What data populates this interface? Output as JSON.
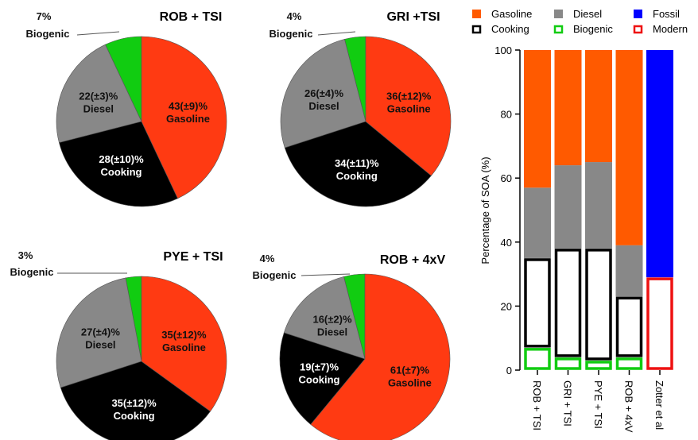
{
  "colors": {
    "gasoline": "#ff3a12",
    "diesel": "#888888",
    "cooking": "#000000",
    "biogenic": "#11cc11",
    "bar_gasoline": "#ff5a00",
    "fossil": "#0000ff",
    "modern": "#ee1111"
  },
  "legend": {
    "items": [
      {
        "label": "Gasoline",
        "style": "filled",
        "color": "#ff5a00"
      },
      {
        "label": "Diesel",
        "style": "filled",
        "color": "#888888"
      },
      {
        "label": "Fossil",
        "style": "filled",
        "color": "#0000ff"
      },
      {
        "label": "Cooking",
        "style": "outline",
        "color": "#000000"
      },
      {
        "label": "Biogenic",
        "style": "outline",
        "color": "#11cc11"
      },
      {
        "label": "Modern",
        "style": "outline",
        "color": "#ee1111"
      }
    ]
  },
  "chart_data": [
    {
      "type": "pie",
      "title": "ROB + TSI",
      "slices": [
        {
          "name": "Gasoline",
          "value": 43,
          "line1": "43(±9)%",
          "line2": "Gasoline",
          "color": "#ff3a12",
          "text": "dark"
        },
        {
          "name": "Cooking",
          "value": 28,
          "line1": "28(±10)%",
          "line2": "Cooking",
          "color": "#000000",
          "text": "light"
        },
        {
          "name": "Diesel",
          "value": 22,
          "line1": "22(±3)%",
          "line2": "Diesel",
          "color": "#888888",
          "text": "dark"
        },
        {
          "name": "Biogenic",
          "value": 7,
          "line1": "7%",
          "line2": "Biogenic",
          "color": "#11cc11",
          "text": "dark",
          "external": true
        }
      ]
    },
    {
      "type": "pie",
      "title": "GRI +TSI",
      "slices": [
        {
          "name": "Gasoline",
          "value": 36,
          "line1": "36(±12)%",
          "line2": "Gasoline",
          "color": "#ff3a12",
          "text": "dark"
        },
        {
          "name": "Cooking",
          "value": 34,
          "line1": "34(±11)%",
          "line2": "Cooking",
          "color": "#000000",
          "text": "light"
        },
        {
          "name": "Diesel",
          "value": 26,
          "line1": "26(±4)%",
          "line2": "Diesel",
          "color": "#888888",
          "text": "dark"
        },
        {
          "name": "Biogenic",
          "value": 4,
          "line1": "4%",
          "line2": "Biogenic",
          "color": "#11cc11",
          "text": "dark",
          "external": true
        }
      ]
    },
    {
      "type": "pie",
      "title": "PYE + TSI",
      "slices": [
        {
          "name": "Gasoline",
          "value": 35,
          "line1": "35(±12)%",
          "line2": "Gasoline",
          "color": "#ff3a12",
          "text": "dark"
        },
        {
          "name": "Cooking",
          "value": 35,
          "line1": "35(±12)%",
          "line2": "Cooking",
          "color": "#000000",
          "text": "light"
        },
        {
          "name": "Diesel",
          "value": 27,
          "line1": "27(±4)%",
          "line2": "Diesel",
          "color": "#888888",
          "text": "dark"
        },
        {
          "name": "Biogenic",
          "value": 3,
          "line1": "3%",
          "line2": "Biogenic",
          "color": "#11cc11",
          "text": "dark",
          "external": true
        }
      ]
    },
    {
      "type": "pie",
      "title": "ROB + 4xV",
      "slices": [
        {
          "name": "Gasoline",
          "value": 61,
          "line1": "61(±7)%",
          "line2": "Gasoline",
          "color": "#ff3a12",
          "text": "dark"
        },
        {
          "name": "Cooking",
          "value": 19,
          "line1": "19(±7)%",
          "line2": "Cooking",
          "color": "#000000",
          "text": "light"
        },
        {
          "name": "Diesel",
          "value": 16,
          "line1": "16(±2)%",
          "line2": "Diesel",
          "color": "#888888",
          "text": "dark"
        },
        {
          "name": "Biogenic",
          "value": 4,
          "line1": "4%",
          "line2": "Biogenic",
          "color": "#11cc11",
          "text": "dark",
          "external": true
        }
      ]
    },
    {
      "type": "bar",
      "stacked": true,
      "ylabel": "Percentage of SOA (%)",
      "ylim": [
        0,
        100
      ],
      "yticks": [
        0,
        20,
        40,
        60,
        80,
        100
      ],
      "categories": [
        "ROB + TSI",
        "GRI + TSI",
        "PYE + TSI",
        "ROB + 4xV",
        "Zotter et al"
      ],
      "series": [
        {
          "name": "Biogenic",
          "values": [
            7,
            4,
            3,
            4,
            0
          ],
          "color": "#11cc11",
          "style": "outline"
        },
        {
          "name": "Cooking",
          "values": [
            28,
            34,
            35,
            19,
            0
          ],
          "color": "#000000",
          "style": "outline"
        },
        {
          "name": "Diesel",
          "values": [
            22,
            26,
            27,
            16,
            0
          ],
          "color": "#888888",
          "style": "filled"
        },
        {
          "name": "Gasoline",
          "values": [
            43,
            36,
            35,
            61,
            0
          ],
          "color": "#ff5a00",
          "style": "filled"
        },
        {
          "name": "Modern",
          "values": [
            0,
            0,
            0,
            0,
            29
          ],
          "color": "#ee1111",
          "style": "outline"
        },
        {
          "name": "Fossil",
          "values": [
            0,
            0,
            0,
            0,
            71
          ],
          "color": "#0000ff",
          "style": "filled"
        }
      ]
    }
  ]
}
